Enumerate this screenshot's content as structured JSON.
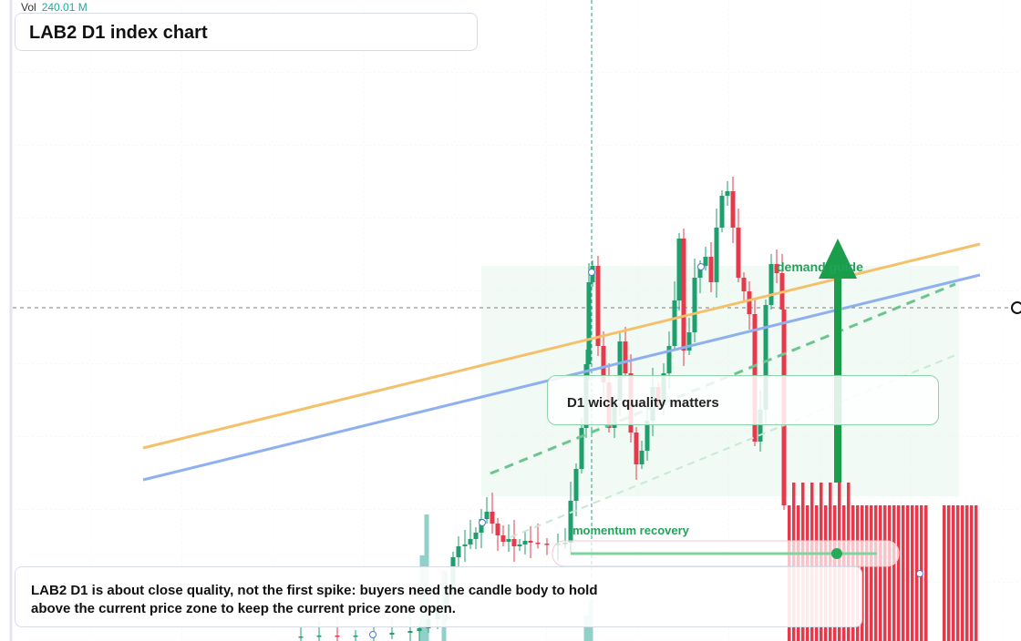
{
  "header": {
    "volume_label": "Vol",
    "volume_value": "240.01 M",
    "title": "LAB2 D1 index chart"
  },
  "annotations": {
    "zone": "demand guide",
    "box": "D1 wick quality matters",
    "momentum": "momentum recovery"
  },
  "note": "LAB2 D1 is about close quality, not the first spike: buyers need the candle body to hold above the current price zone to keep the current price zone open."
}
